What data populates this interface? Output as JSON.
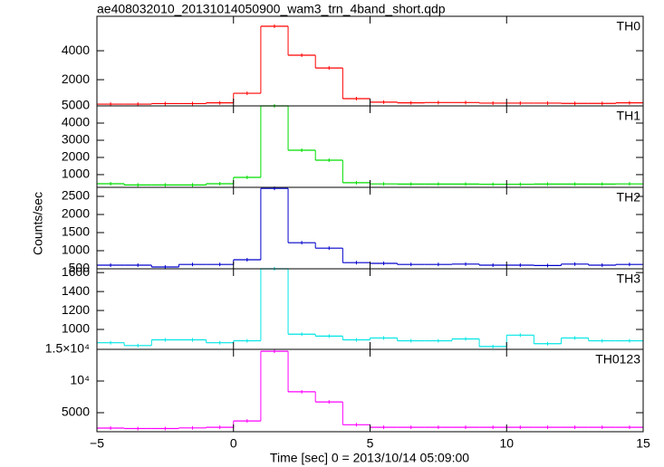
{
  "chart_data": [
    {
      "type": "histogram",
      "title": "ae408032010_20131014050900_wam3_trn_4band_short.qdp",
      "label": "TH0",
      "color": "#ff0000",
      "bins": [
        -5,
        -4,
        -3,
        -2,
        -1,
        0,
        1,
        2,
        3,
        4,
        5,
        6,
        7,
        8,
        9,
        10,
        11,
        12,
        13,
        14,
        15
      ],
      "values": [
        310,
        310,
        350,
        350,
        400,
        1060,
        5690,
        3690,
        2810,
        690,
        450,
        400,
        420,
        420,
        380,
        380,
        380,
        360,
        360,
        400
      ],
      "ylim": [
        190,
        6380
      ],
      "yticks": [
        2000,
        4000
      ]
    },
    {
      "type": "histogram",
      "label": "TH1",
      "color": "#00dd00",
      "bins": [
        -5,
        -4,
        -3,
        -2,
        -1,
        0,
        1,
        2,
        3,
        4,
        5,
        6,
        7,
        8,
        9,
        10,
        11,
        12,
        13,
        14,
        15
      ],
      "values": [
        470,
        400,
        400,
        400,
        470,
        840,
        5000,
        2420,
        1840,
        530,
        460,
        450,
        450,
        450,
        440,
        440,
        450,
        450,
        450,
        460
      ],
      "ylim": [
        260,
        5000
      ],
      "yticks": [
        1000,
        2000,
        3000,
        4000,
        5000
      ]
    },
    {
      "type": "histogram",
      "label": "TH2",
      "color": "#0000cc",
      "y_label": "Counts/sec",
      "bins": [
        -5,
        -4,
        -3,
        -2,
        -1,
        0,
        1,
        2,
        3,
        4,
        5,
        6,
        7,
        8,
        9,
        10,
        11,
        12,
        13,
        14,
        15
      ],
      "values": [
        600,
        600,
        550,
        620,
        620,
        750,
        2720,
        1220,
        1070,
        670,
        650,
        620,
        620,
        630,
        600,
        600,
        590,
        630,
        600,
        620
      ],
      "ylim": [
        500,
        2750
      ],
      "yticks": [
        500,
        1000,
        1500,
        2000,
        2500
      ]
    },
    {
      "type": "histogram",
      "label": "TH3",
      "color": "#00e5e5",
      "bins": [
        -5,
        -4,
        -3,
        -2,
        -1,
        0,
        1,
        2,
        3,
        4,
        5,
        6,
        7,
        8,
        9,
        10,
        11,
        12,
        13,
        14,
        15
      ],
      "values": [
        860,
        830,
        890,
        890,
        860,
        880,
        1640,
        950,
        930,
        890,
        910,
        880,
        880,
        900,
        820,
        940,
        850,
        910,
        880,
        880
      ],
      "ylim": [
        790,
        1640
      ],
      "yticks": [
        1000,
        1200,
        1400,
        1600
      ]
    },
    {
      "type": "histogram",
      "label": "TH0123",
      "color": "#ff00ff",
      "x_label": "Time [sec] 0 = 2013/10/14 05:09:00",
      "bins": [
        -5,
        -4,
        -3,
        -2,
        -1,
        0,
        1,
        2,
        3,
        4,
        5,
        6,
        7,
        8,
        9,
        10,
        11,
        12,
        13,
        14,
        15
      ],
      "values": [
        2570,
        2500,
        2500,
        2600,
        2700,
        3700,
        14700,
        8300,
        6700,
        3100,
        2700,
        2700,
        2700,
        2700,
        2700,
        2700,
        2700,
        2700,
        2700,
        2700
      ],
      "ylim": [
        2000,
        15000
      ],
      "yticks": [
        5000,
        {
          "value": 10000,
          "label": "10⁴"
        },
        {
          "value": 15000,
          "label": "1.5×10⁴"
        }
      ],
      "xlim": [
        -5,
        15
      ],
      "xticks": [
        {
          "value": -5,
          "label": "−5"
        },
        0,
        5,
        10,
        15
      ]
    }
  ]
}
